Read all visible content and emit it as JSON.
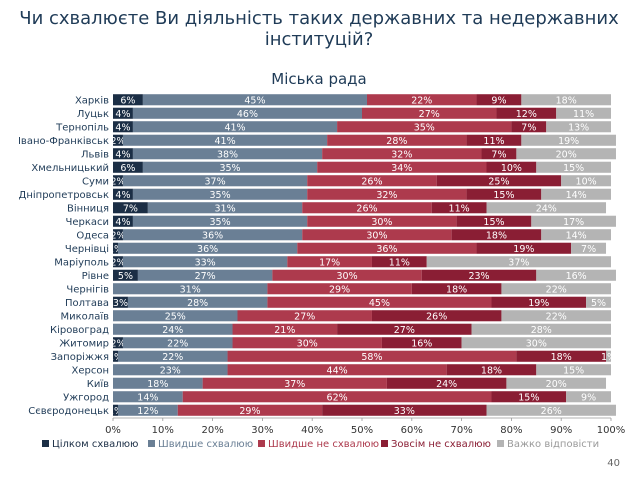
{
  "page": {
    "title_line1": "Чи схвалюєте Ви діяльність таких державних та недержавних",
    "title_line2": "інституцій?",
    "subtitle": "Міська рада",
    "page_number": "40"
  },
  "colors": {
    "fully_approve": "#1b2e45",
    "rather_approve": "#6a7f95",
    "rather_disapprove": "#ad3a4d",
    "fully_disapprove": "#8a1e34",
    "hard_to_say": "#b4b4b4"
  },
  "chart_data": {
    "type": "bar",
    "orientation": "horizontal",
    "stacked": true,
    "title": "Міська рада",
    "xlim": [
      0,
      100
    ],
    "x_ticks": [
      "0%",
      "10%",
      "20%",
      "30%",
      "40%",
      "50%",
      "60%",
      "70%",
      "80%",
      "90%",
      "100%"
    ],
    "legend_position": "bottom",
    "categories": [
      "Харків",
      "Луцьк",
      "Тернопіль",
      "Івано-Франківськ",
      "Львів",
      "Хмельницький",
      "Суми",
      "Дніпропетровськ",
      "Вінниця",
      "Черкаси",
      "Одеса",
      "Чернівці",
      "Маріуполь",
      "Рівне",
      "Чернігів",
      "Полтава",
      "Миколаїв",
      "Кіровоград",
      "Житомир",
      "Запоріжжя",
      "Херсон",
      "Київ",
      "Ужгород",
      "Сєвєродонецьк"
    ],
    "series": [
      {
        "name": "Цілком схвалюю",
        "values": [
          6,
          4,
          4,
          2,
          4,
          6,
          2,
          4,
          7,
          4,
          2,
          1,
          2,
          5,
          0,
          3,
          0,
          0,
          2,
          1,
          0,
          0,
          0,
          1
        ]
      },
      {
        "name": "Швидше схвалюю",
        "values": [
          45,
          46,
          41,
          41,
          38,
          35,
          37,
          35,
          31,
          35,
          36,
          36,
          33,
          27,
          31,
          28,
          25,
          24,
          22,
          22,
          23,
          18,
          14,
          12
        ]
      },
      {
        "name": "Швидше не схвалюю",
        "values": [
          22,
          27,
          35,
          28,
          32,
          34,
          26,
          32,
          26,
          30,
          30,
          36,
          17,
          30,
          29,
          45,
          27,
          21,
          30,
          58,
          44,
          37,
          62,
          29
        ]
      },
      {
        "name": "Зовсім не схвалюю",
        "values": [
          9,
          12,
          7,
          11,
          7,
          10,
          25,
          15,
          11,
          15,
          18,
          19,
          11,
          23,
          18,
          19,
          26,
          27,
          16,
          18,
          18,
          24,
          15,
          33
        ]
      },
      {
        "name": "Важко відповісти",
        "values": [
          18,
          11,
          13,
          19,
          20,
          15,
          10,
          14,
          24,
          17,
          14,
          7,
          37,
          16,
          22,
          5,
          22,
          28,
          30,
          1,
          15,
          20,
          9,
          26
        ]
      }
    ]
  }
}
